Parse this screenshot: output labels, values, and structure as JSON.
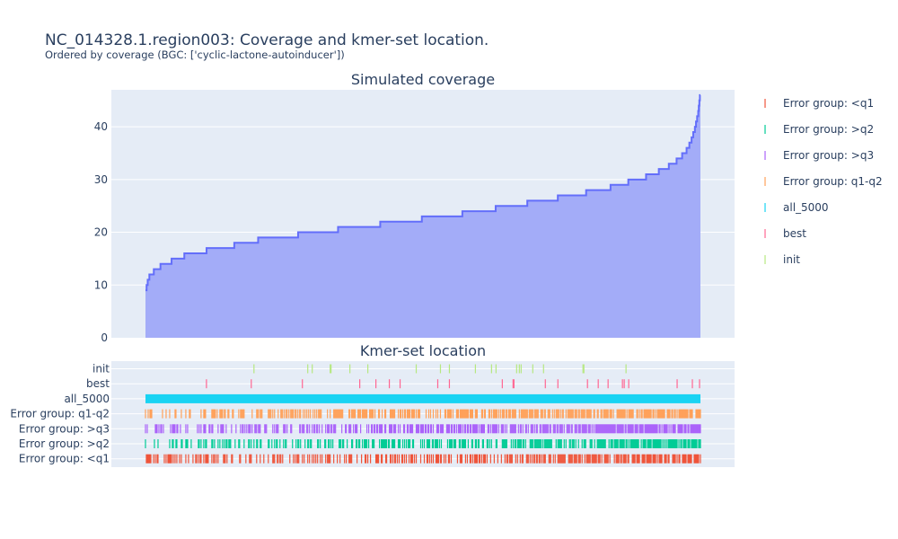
{
  "title": "NC_014328.1.region003: Coverage and kmer-set location.",
  "subtitle": "Ordered by coverage (BGC: ['cyclic-lactone-autoinducer'])",
  "chart_data": [
    {
      "type": "area",
      "title": "Simulated coverage",
      "ylim": [
        0,
        47
      ],
      "y_ticks": [
        0,
        10,
        20,
        30,
        40
      ],
      "x_ticks_shown": false,
      "grid": true,
      "color": "#636efa",
      "fill_color": "#a3acf8",
      "steps": [
        {
          "x": 0.0,
          "y": 9
        },
        {
          "x": 0.002,
          "y": 10
        },
        {
          "x": 0.004,
          "y": 11
        },
        {
          "x": 0.007,
          "y": 12
        },
        {
          "x": 0.015,
          "y": 13
        },
        {
          "x": 0.027,
          "y": 14
        },
        {
          "x": 0.047,
          "y": 15
        },
        {
          "x": 0.07,
          "y": 16
        },
        {
          "x": 0.11,
          "y": 17
        },
        {
          "x": 0.16,
          "y": 18
        },
        {
          "x": 0.203,
          "y": 19
        },
        {
          "x": 0.275,
          "y": 20
        },
        {
          "x": 0.347,
          "y": 21
        },
        {
          "x": 0.423,
          "y": 22
        },
        {
          "x": 0.498,
          "y": 23
        },
        {
          "x": 0.571,
          "y": 24
        },
        {
          "x": 0.631,
          "y": 25
        },
        {
          "x": 0.688,
          "y": 26
        },
        {
          "x": 0.743,
          "y": 27
        },
        {
          "x": 0.794,
          "y": 28
        },
        {
          "x": 0.838,
          "y": 29
        },
        {
          "x": 0.87,
          "y": 30
        },
        {
          "x": 0.902,
          "y": 31
        },
        {
          "x": 0.925,
          "y": 32
        },
        {
          "x": 0.943,
          "y": 33
        },
        {
          "x": 0.957,
          "y": 34
        },
        {
          "x": 0.967,
          "y": 35
        },
        {
          "x": 0.975,
          "y": 36
        },
        {
          "x": 0.98,
          "y": 37
        },
        {
          "x": 0.984,
          "y": 38
        },
        {
          "x": 0.987,
          "y": 39
        },
        {
          "x": 0.99,
          "y": 40
        },
        {
          "x": 0.992,
          "y": 41
        },
        {
          "x": 0.994,
          "y": 42
        },
        {
          "x": 0.996,
          "y": 43
        },
        {
          "x": 0.997,
          "y": 44
        },
        {
          "x": 0.998,
          "y": 45
        },
        {
          "x": 0.999,
          "y": 46
        },
        {
          "x": 1.0,
          "y": 46
        }
      ]
    },
    {
      "type": "scatter",
      "title": "Kmer-set location",
      "categories": [
        "init",
        "best",
        "all_5000",
        "Error group: q1-q2",
        "Error group: >q3",
        "Error group: >q2",
        "Error group: <q1"
      ],
      "series": [
        {
          "name": "init",
          "color": "#b6e880",
          "density": 0.05,
          "seed": 11
        },
        {
          "name": "best",
          "color": "#ff6692",
          "density": 0.05,
          "seed": 23
        },
        {
          "name": "all_5000",
          "color": "#19d3f3",
          "density": 1.0,
          "seed": 5
        },
        {
          "name": "Error group: q1-q2",
          "color": "#ffa15a",
          "density": 0.85,
          "seed": 41
        },
        {
          "name": "Error group: >q3",
          "color": "#ab63fa",
          "density": 0.82,
          "seed": 59
        },
        {
          "name": "Error group: >q2",
          "color": "#00cc96",
          "density": 0.78,
          "seed": 71
        },
        {
          "name": "Error group: <q1",
          "color": "#ef553b",
          "density": 0.75,
          "seed": 97
        }
      ]
    }
  ],
  "legend": {
    "position": "right",
    "items": [
      {
        "label": "Error group: <q1",
        "color": "#ef553b"
      },
      {
        "label": "Error group: >q2",
        "color": "#00cc96"
      },
      {
        "label": "Error group: >q3",
        "color": "#ab63fa"
      },
      {
        "label": "Error group: q1-q2",
        "color": "#ffa15a"
      },
      {
        "label": "all_5000",
        "color": "#19d3f3"
      },
      {
        "label": "best",
        "color": "#ff6692"
      },
      {
        "label": "init",
        "color": "#b6e880"
      }
    ]
  }
}
